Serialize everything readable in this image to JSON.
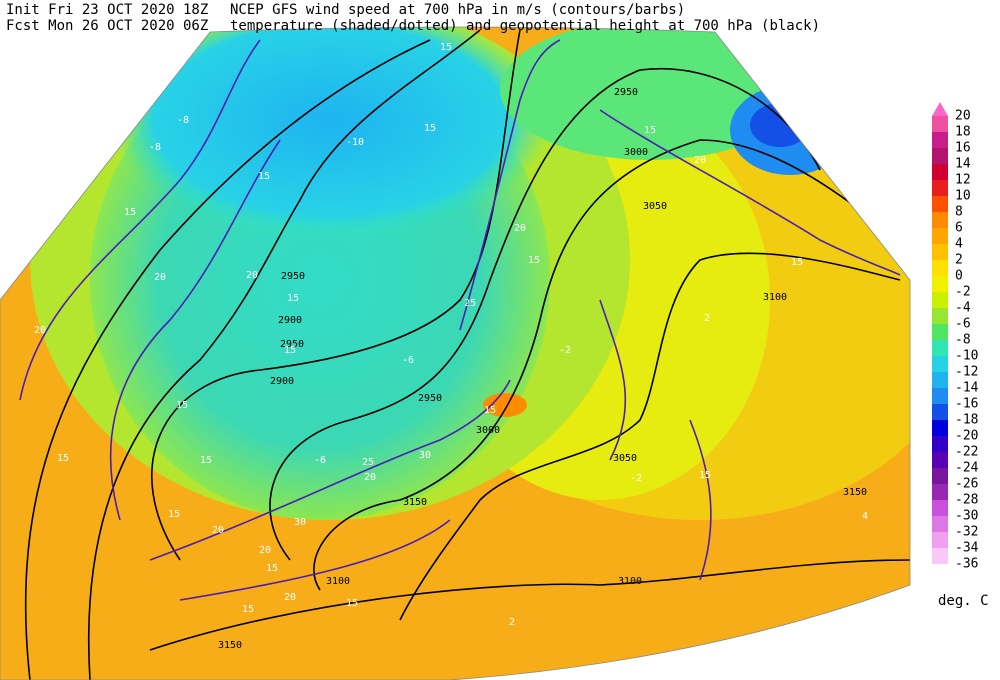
{
  "header": {
    "init_label": "Init  Fri 23 OCT 2020 18Z",
    "fcst_label": "Fcst Mon 26 OCT 2020 06Z",
    "line1": "NCEP GFS wind speed at 700 hPa in m/s (contours/barbs)",
    "line2": "temperature (shaded/dotted) and geopotential height at 700 hPa (black)"
  },
  "legend": {
    "labels": [
      "20",
      "18",
      "16",
      "14",
      "12",
      "10",
      "8",
      "6",
      "4",
      "2",
      "0",
      "-2",
      "-4",
      "-6",
      "-8",
      "-10",
      "-12",
      "-14",
      "-16",
      "-18",
      "-20",
      "-22",
      "-24",
      "-26",
      "-28",
      "-30",
      "-32",
      "-34",
      "-36"
    ],
    "colors": [
      "#f050a0",
      "#c81e8c",
      "#b4146e",
      "#d00030",
      "#e81e1e",
      "#ff5000",
      "#ff8c00",
      "#ffa500",
      "#ffc000",
      "#ffe000",
      "#f0f000",
      "#c8f000",
      "#96e632",
      "#50e664",
      "#32e6b4",
      "#28d2e6",
      "#1eb4f0",
      "#1e8cf0",
      "#1450e6",
      "#0000dc",
      "#3200c8",
      "#5a00b4",
      "#7814a0",
      "#9628b4",
      "#c850dc",
      "#dc78e6",
      "#f0a0f0",
      "#f8c8f8"
    ],
    "top_color": "#ff66cc",
    "unit": "deg. C"
  },
  "map": {
    "height_labels": [
      "2950",
      "3000",
      "3050",
      "3100",
      "3150",
      "3100",
      "3050",
      "3000",
      "2950",
      "2900",
      "2950",
      "2900",
      "2950",
      "3100",
      "3150",
      "3150"
    ],
    "wind_labels": [
      "15",
      "15",
      "15",
      "20",
      "15",
      "15",
      "15",
      "15",
      "15",
      "20",
      "20",
      "15",
      "20",
      "15",
      "15",
      "20",
      "15",
      "15",
      "25",
      "15",
      "20",
      "25",
      "30",
      "30",
      "20",
      "20",
      "15",
      "20",
      "15",
      "15",
      "15"
    ],
    "temperature_labels": [
      "-10",
      "-6",
      "-6",
      "-2",
      "-2",
      "2",
      "4",
      "2",
      "-8",
      "-8"
    ]
  }
}
